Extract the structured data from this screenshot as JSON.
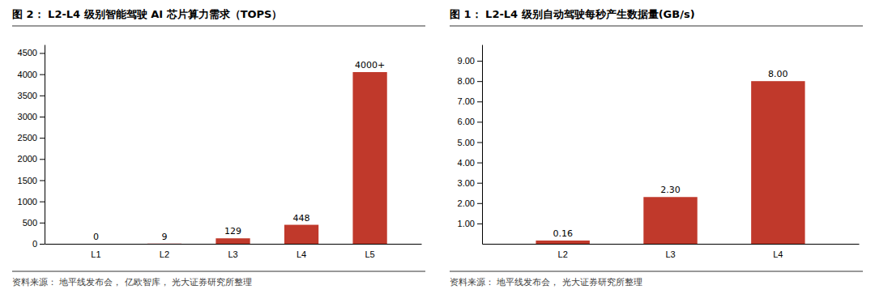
{
  "chart_data": [
    {
      "type": "bar",
      "title": "图 2： L2-L4 级别智能驾驶 AI 芯片算力需求（TOPS）",
      "categories": [
        "L1",
        "L2",
        "L3",
        "L4",
        "L5"
      ],
      "values": [
        0,
        9,
        129,
        448,
        4050
      ],
      "value_labels": [
        "0",
        "9",
        "129",
        "448",
        "4000+"
      ],
      "data_labels": true,
      "colors": [
        "#E8A0A0",
        "#E8A0A0",
        "#C0392B",
        "#C0392B",
        "#C0392B"
      ],
      "ylim": [
        0,
        4700
      ],
      "yticks": [
        0,
        500,
        1000,
        1500,
        2000,
        2500,
        3000,
        3500,
        4000,
        4500
      ],
      "grid": false,
      "source": "资料来源： 地平线发布会， 亿欧智库， 光大证券研究所整理"
    },
    {
      "type": "bar",
      "title": "图 1： L2-L4 级别自动驾驶每秒产生数据量(GB/s)",
      "categories": [
        "L2",
        "L3",
        "L4"
      ],
      "values": [
        0.16,
        2.3,
        8.0
      ],
      "value_labels": [
        "0.16",
        "2.30",
        "8.00"
      ],
      "data_labels": true,
      "color": "#C0392B",
      "ylim": [
        0,
        9.8
      ],
      "yticks": [
        {
          "value": 1,
          "label": "1.00"
        },
        {
          "value": 2,
          "label": "2.00"
        },
        {
          "value": 3,
          "label": "3.00"
        },
        {
          "value": 4,
          "label": "4.00"
        },
        {
          "value": 5,
          "label": "5.00"
        },
        {
          "value": 6,
          "label": "6.00"
        },
        {
          "value": 7,
          "label": "7.00"
        },
        {
          "value": 8,
          "label": "8.00"
        },
        {
          "value": 9,
          "label": "9.00"
        }
      ],
      "grid": false,
      "source": "资料来源： 地平线发布会， 光大证券研究所整理"
    }
  ]
}
